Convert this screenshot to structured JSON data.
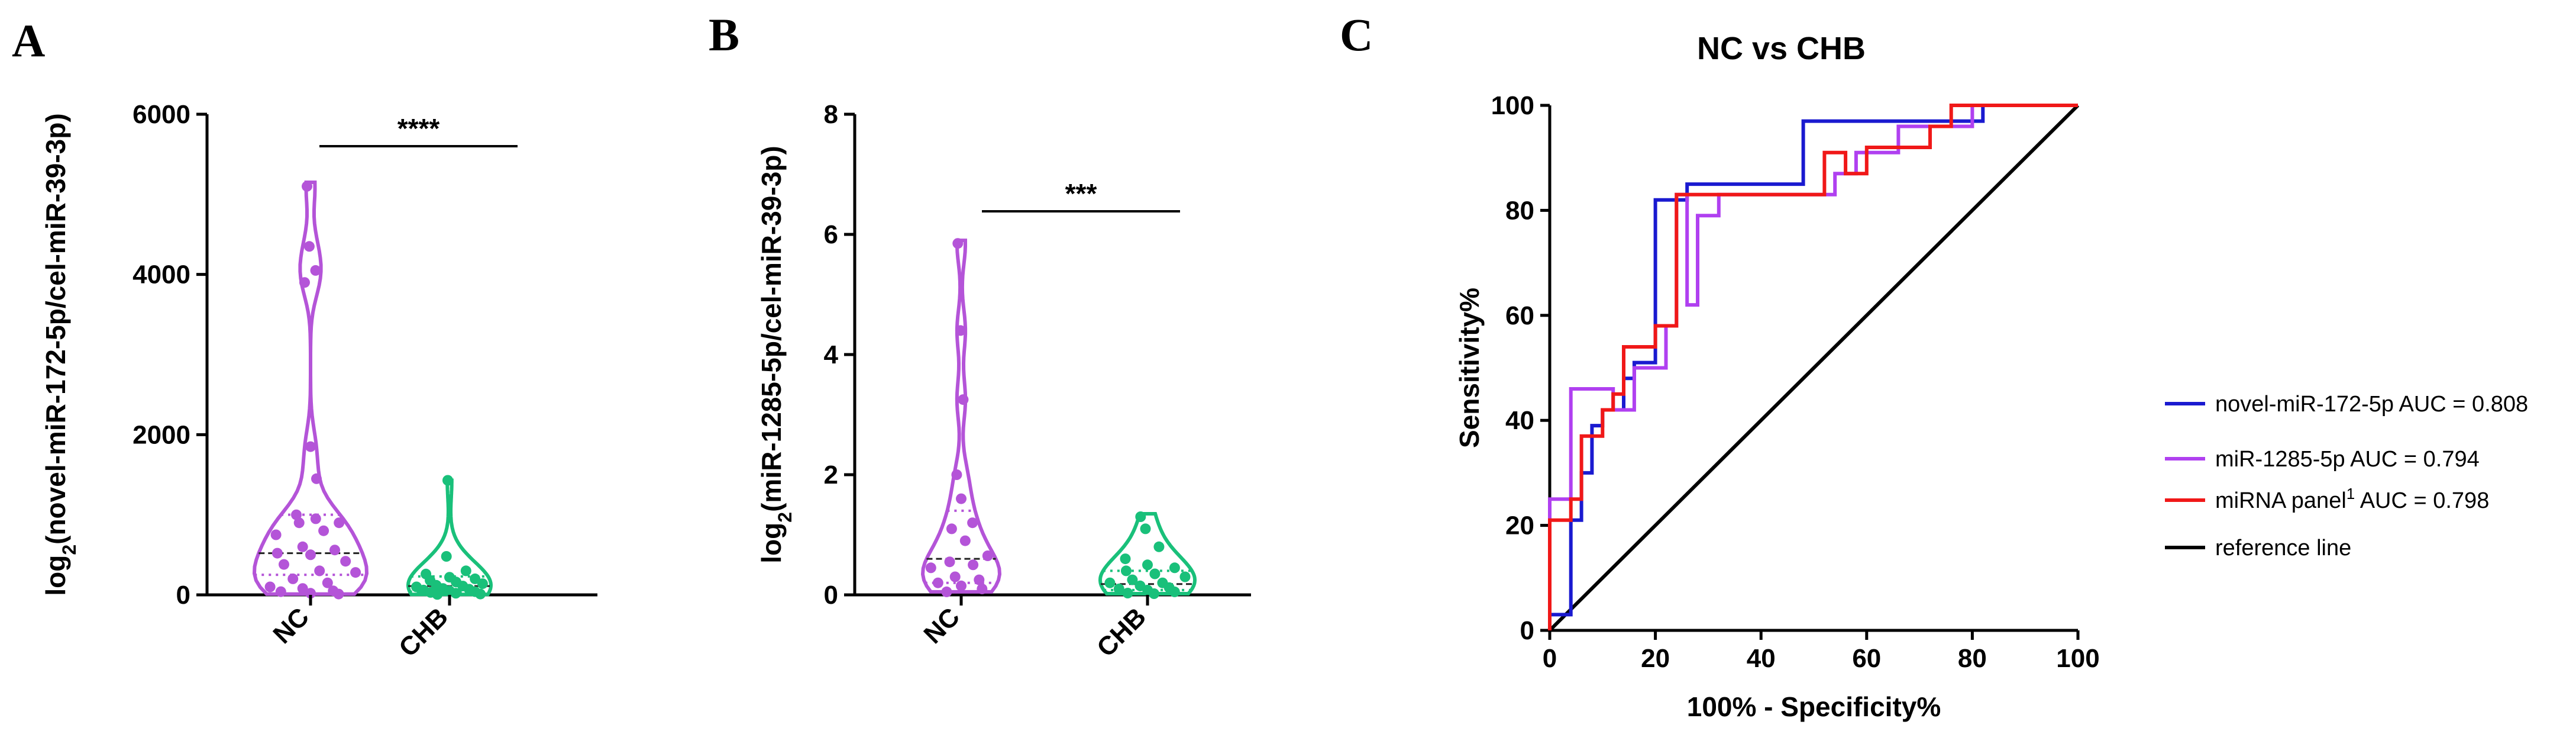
{
  "figure": {
    "panels": [
      {
        "letter": "A"
      },
      {
        "letter": "B"
      },
      {
        "letter": "C"
      }
    ]
  },
  "colors": {
    "purple": "#b454d8",
    "green": "#19c07a",
    "blue": "#1a1ad0",
    "violet": "#b040f0",
    "red": "#f01818",
    "black": "#000000"
  },
  "chart_data": [
    {
      "type": "violin",
      "panel": "A",
      "title": "",
      "ylabel_prefix": "log",
      "ylabel_sub": "2",
      "ylabel_rest": "(novel-miR-172-5p/cel-miR-39-3p)",
      "categories": [
        "NC",
        "CHB"
      ],
      "ylim": [
        0,
        6000
      ],
      "yticks": [
        0,
        2000,
        4000,
        6000
      ],
      "significance": "****",
      "series": [
        {
          "name": "NC",
          "color": "#b454d8",
          "points": [
            5100,
            4350,
            4050,
            3900,
            1850,
            1450,
            1000,
            950,
            900,
            900,
            800,
            750,
            600,
            560,
            520,
            500,
            420,
            380,
            300,
            280,
            200,
            150,
            100,
            80,
            50,
            40,
            20,
            10
          ],
          "quartiles": [
            250,
            520,
            1000
          ],
          "max": 5150
        },
        {
          "name": "CHB",
          "color": "#19c07a",
          "points": [
            1430,
            480,
            300,
            260,
            220,
            200,
            180,
            160,
            140,
            120,
            110,
            100,
            80,
            70,
            60,
            50,
            40,
            30,
            20,
            10,
            5
          ],
          "quartiles": [
            40,
            110,
            230
          ],
          "max": 1430
        }
      ]
    },
    {
      "type": "violin",
      "panel": "B",
      "title": "",
      "ylabel_prefix": "log",
      "ylabel_sub": "2",
      "ylabel_rest": "(miR-1285-5p/cel-miR-39-3p)",
      "categories": [
        "NC",
        "CHB"
      ],
      "ylim": [
        0,
        8
      ],
      "yticks": [
        0,
        2,
        4,
        6,
        8
      ],
      "significance": "***",
      "series": [
        {
          "name": "NC",
          "color": "#b454d8",
          "points": [
            5.85,
            4.4,
            3.25,
            2.0,
            1.6,
            1.2,
            1.1,
            0.9,
            0.65,
            0.55,
            0.5,
            0.45,
            0.3,
            0.25,
            0.2,
            0.15,
            0.1,
            0.05
          ],
          "quartiles": [
            0.2,
            0.6,
            1.4
          ],
          "max": 5.9
        },
        {
          "name": "CHB",
          "color": "#19c07a",
          "points": [
            1.3,
            1.1,
            0.8,
            0.6,
            0.5,
            0.45,
            0.4,
            0.35,
            0.3,
            0.25,
            0.2,
            0.2,
            0.15,
            0.12,
            0.1,
            0.08,
            0.05,
            0.03,
            0.02
          ],
          "quartiles": [
            0.08,
            0.18,
            0.4
          ],
          "max": 1.35
        }
      ]
    },
    {
      "type": "line",
      "panel": "C",
      "title": "NC vs CHB",
      "xlabel": "100% - Specificity%",
      "ylabel": "Sensitivity%",
      "xlim": [
        0,
        100
      ],
      "ylim": [
        0,
        100
      ],
      "xticks": [
        0,
        20,
        40,
        60,
        80,
        100
      ],
      "yticks": [
        0,
        20,
        40,
        60,
        80,
        100
      ],
      "series": [
        {
          "name": "novel-miR-172-5p AUC = 0.808",
          "color": "#1a1ad0",
          "x": [
            0,
            0,
            4,
            4,
            6,
            6,
            8,
            8,
            10,
            10,
            14,
            14,
            16,
            16,
            20,
            20,
            22,
            22,
            26,
            26,
            48,
            48,
            82,
            82,
            100
          ],
          "y": [
            0,
            3,
            3,
            21,
            21,
            30,
            30,
            39,
            39,
            42,
            42,
            48,
            48,
            51,
            51,
            82,
            82,
            82,
            82,
            85,
            85,
            97,
            97,
            100,
            100
          ]
        },
        {
          "name": "miR-1285-5p AUC = 0.794",
          "color": "#b040f0",
          "x": [
            0,
            0,
            4,
            4,
            12,
            12,
            16,
            16,
            22,
            22,
            24,
            24,
            26,
            26,
            28,
            28,
            32,
            32,
            50,
            50,
            54,
            54,
            58,
            58,
            66,
            66,
            80,
            80,
            100
          ],
          "y": [
            0,
            25,
            25,
            46,
            46,
            42,
            42,
            50,
            50,
            58,
            58,
            83,
            83,
            62,
            62,
            79,
            79,
            83,
            83,
            83,
            83,
            87,
            87,
            91,
            91,
            96,
            96,
            100,
            100
          ]
        },
        {
          "name": "miRNA panel",
          "name_sup": "1",
          "name_rest": " AUC = 0.798",
          "color": "#f01818",
          "x": [
            0,
            0,
            4,
            4,
            6,
            6,
            10,
            10,
            12,
            12,
            14,
            14,
            20,
            20,
            22,
            22,
            24,
            24,
            52,
            52,
            56,
            56,
            60,
            60,
            72,
            72,
            76,
            76,
            100
          ],
          "y": [
            0,
            21,
            21,
            25,
            25,
            37,
            37,
            42,
            42,
            45,
            45,
            54,
            54,
            58,
            58,
            58,
            58,
            83,
            83,
            91,
            91,
            87,
            87,
            92,
            92,
            96,
            96,
            100,
            100
          ]
        },
        {
          "name": "reference line",
          "color": "#000000",
          "x": [
            0,
            100
          ],
          "y": [
            0,
            100
          ]
        }
      ]
    }
  ]
}
